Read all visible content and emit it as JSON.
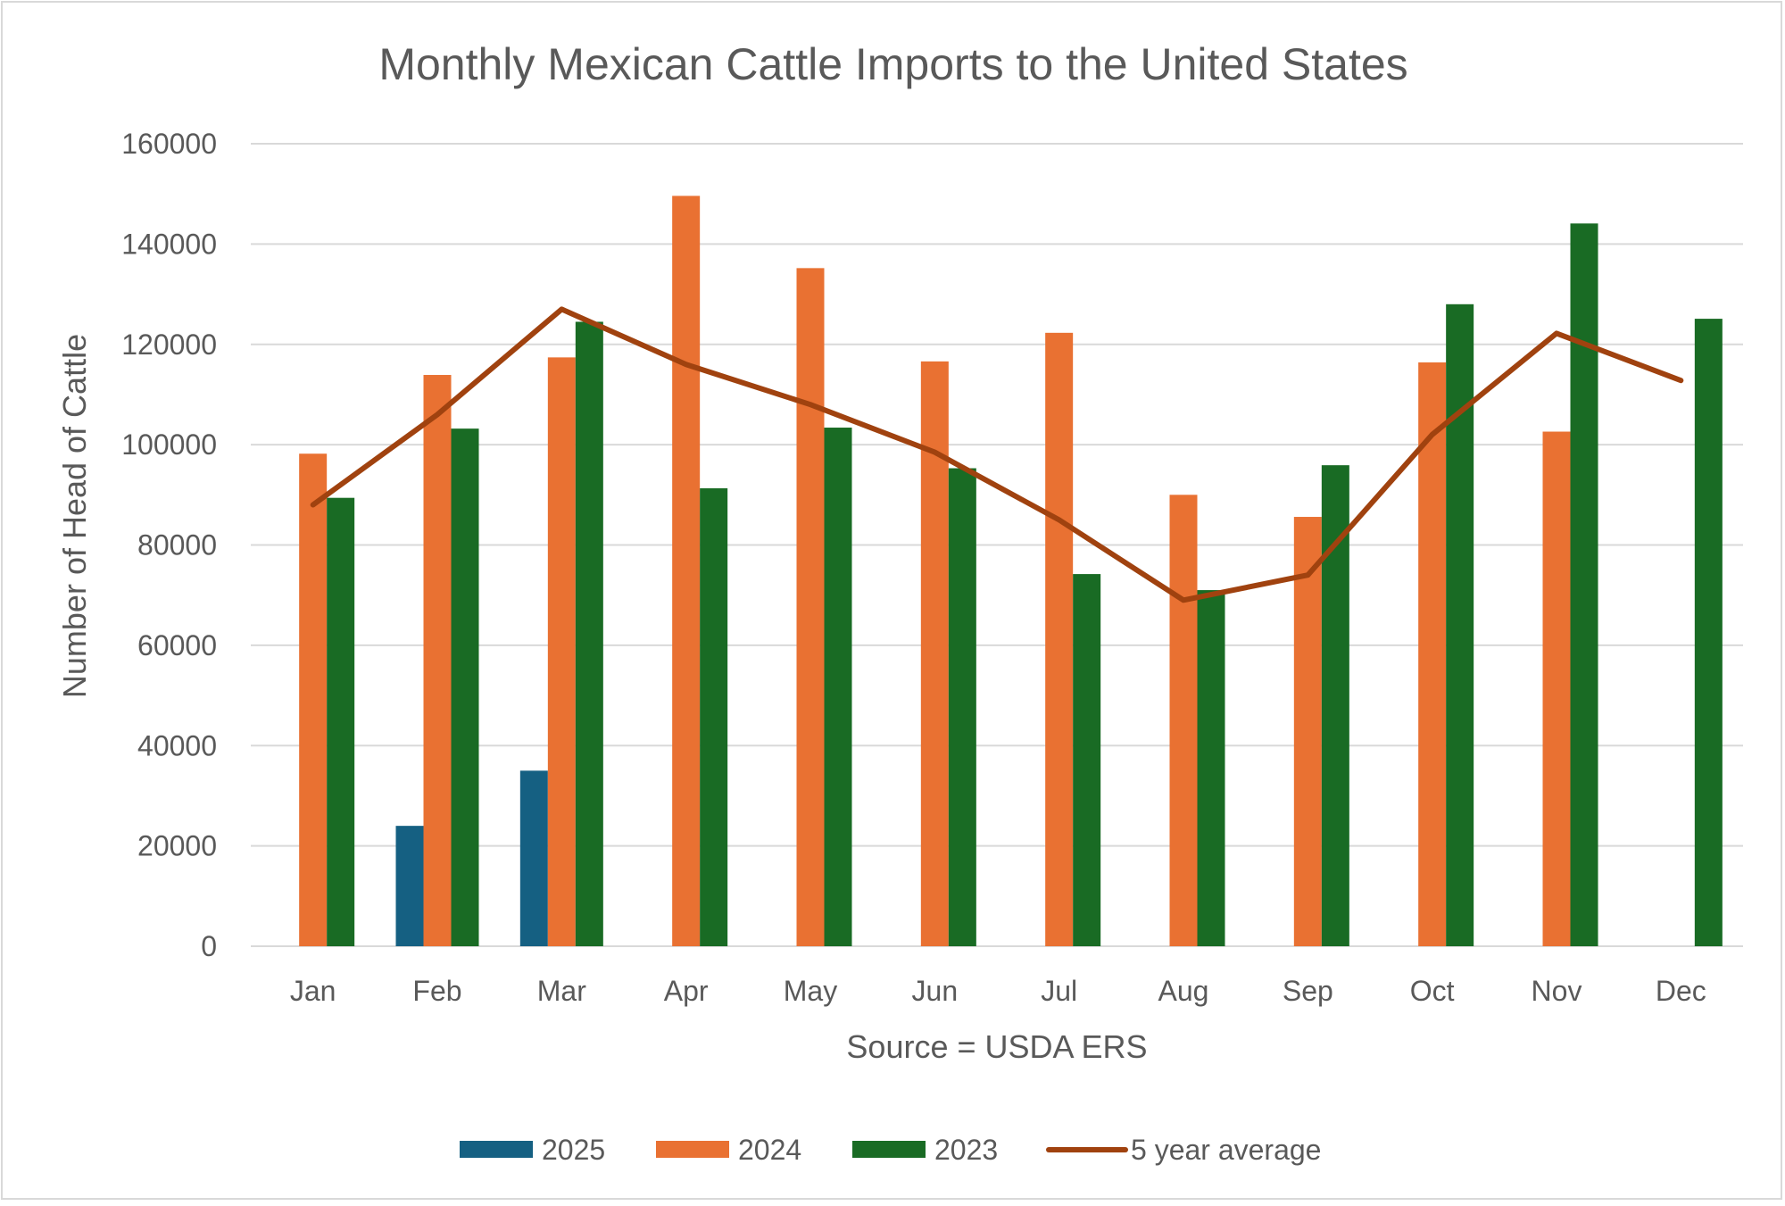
{
  "chart_data": {
    "type": "bar",
    "title": "Monthly Mexican Cattle Imports to the United States",
    "xlabel": "Source = USDA ERS",
    "ylabel": "Number of Head of Cattle",
    "ylim": [
      0,
      160000
    ],
    "yticks": [
      "0",
      "20000",
      "40000",
      "60000",
      "80000",
      "100000",
      "120000",
      "140000",
      "160000"
    ],
    "categories": [
      "Jan",
      "Feb",
      "Mar",
      "Apr",
      "May",
      "Jun",
      "Jul",
      "Aug",
      "Sep",
      "Oct",
      "Nov",
      "Dec"
    ],
    "grid": true,
    "legend_position": "bottom",
    "series": [
      {
        "name": "2025",
        "kind": "bar",
        "color": "#156082",
        "values": [
          null,
          24000,
          35000,
          null,
          null,
          null,
          null,
          null,
          null,
          null,
          null,
          null
        ]
      },
      {
        "name": "2024",
        "kind": "bar",
        "color": "#E97132",
        "values": [
          98200,
          113900,
          117400,
          149600,
          135200,
          116600,
          122300,
          90000,
          85600,
          116400,
          102600,
          null
        ]
      },
      {
        "name": "2023",
        "kind": "bar",
        "color": "#196B24",
        "values": [
          89400,
          103200,
          124500,
          91300,
          103400,
          95300,
          74200,
          71000,
          95900,
          128000,
          144100,
          125100
        ]
      },
      {
        "name": "5 year average",
        "kind": "line",
        "color": "#A0420F",
        "values": [
          88000,
          106000,
          127000,
          116000,
          108000,
          98500,
          85000,
          69000,
          74000,
          102000,
          122200,
          112800
        ]
      }
    ]
  }
}
